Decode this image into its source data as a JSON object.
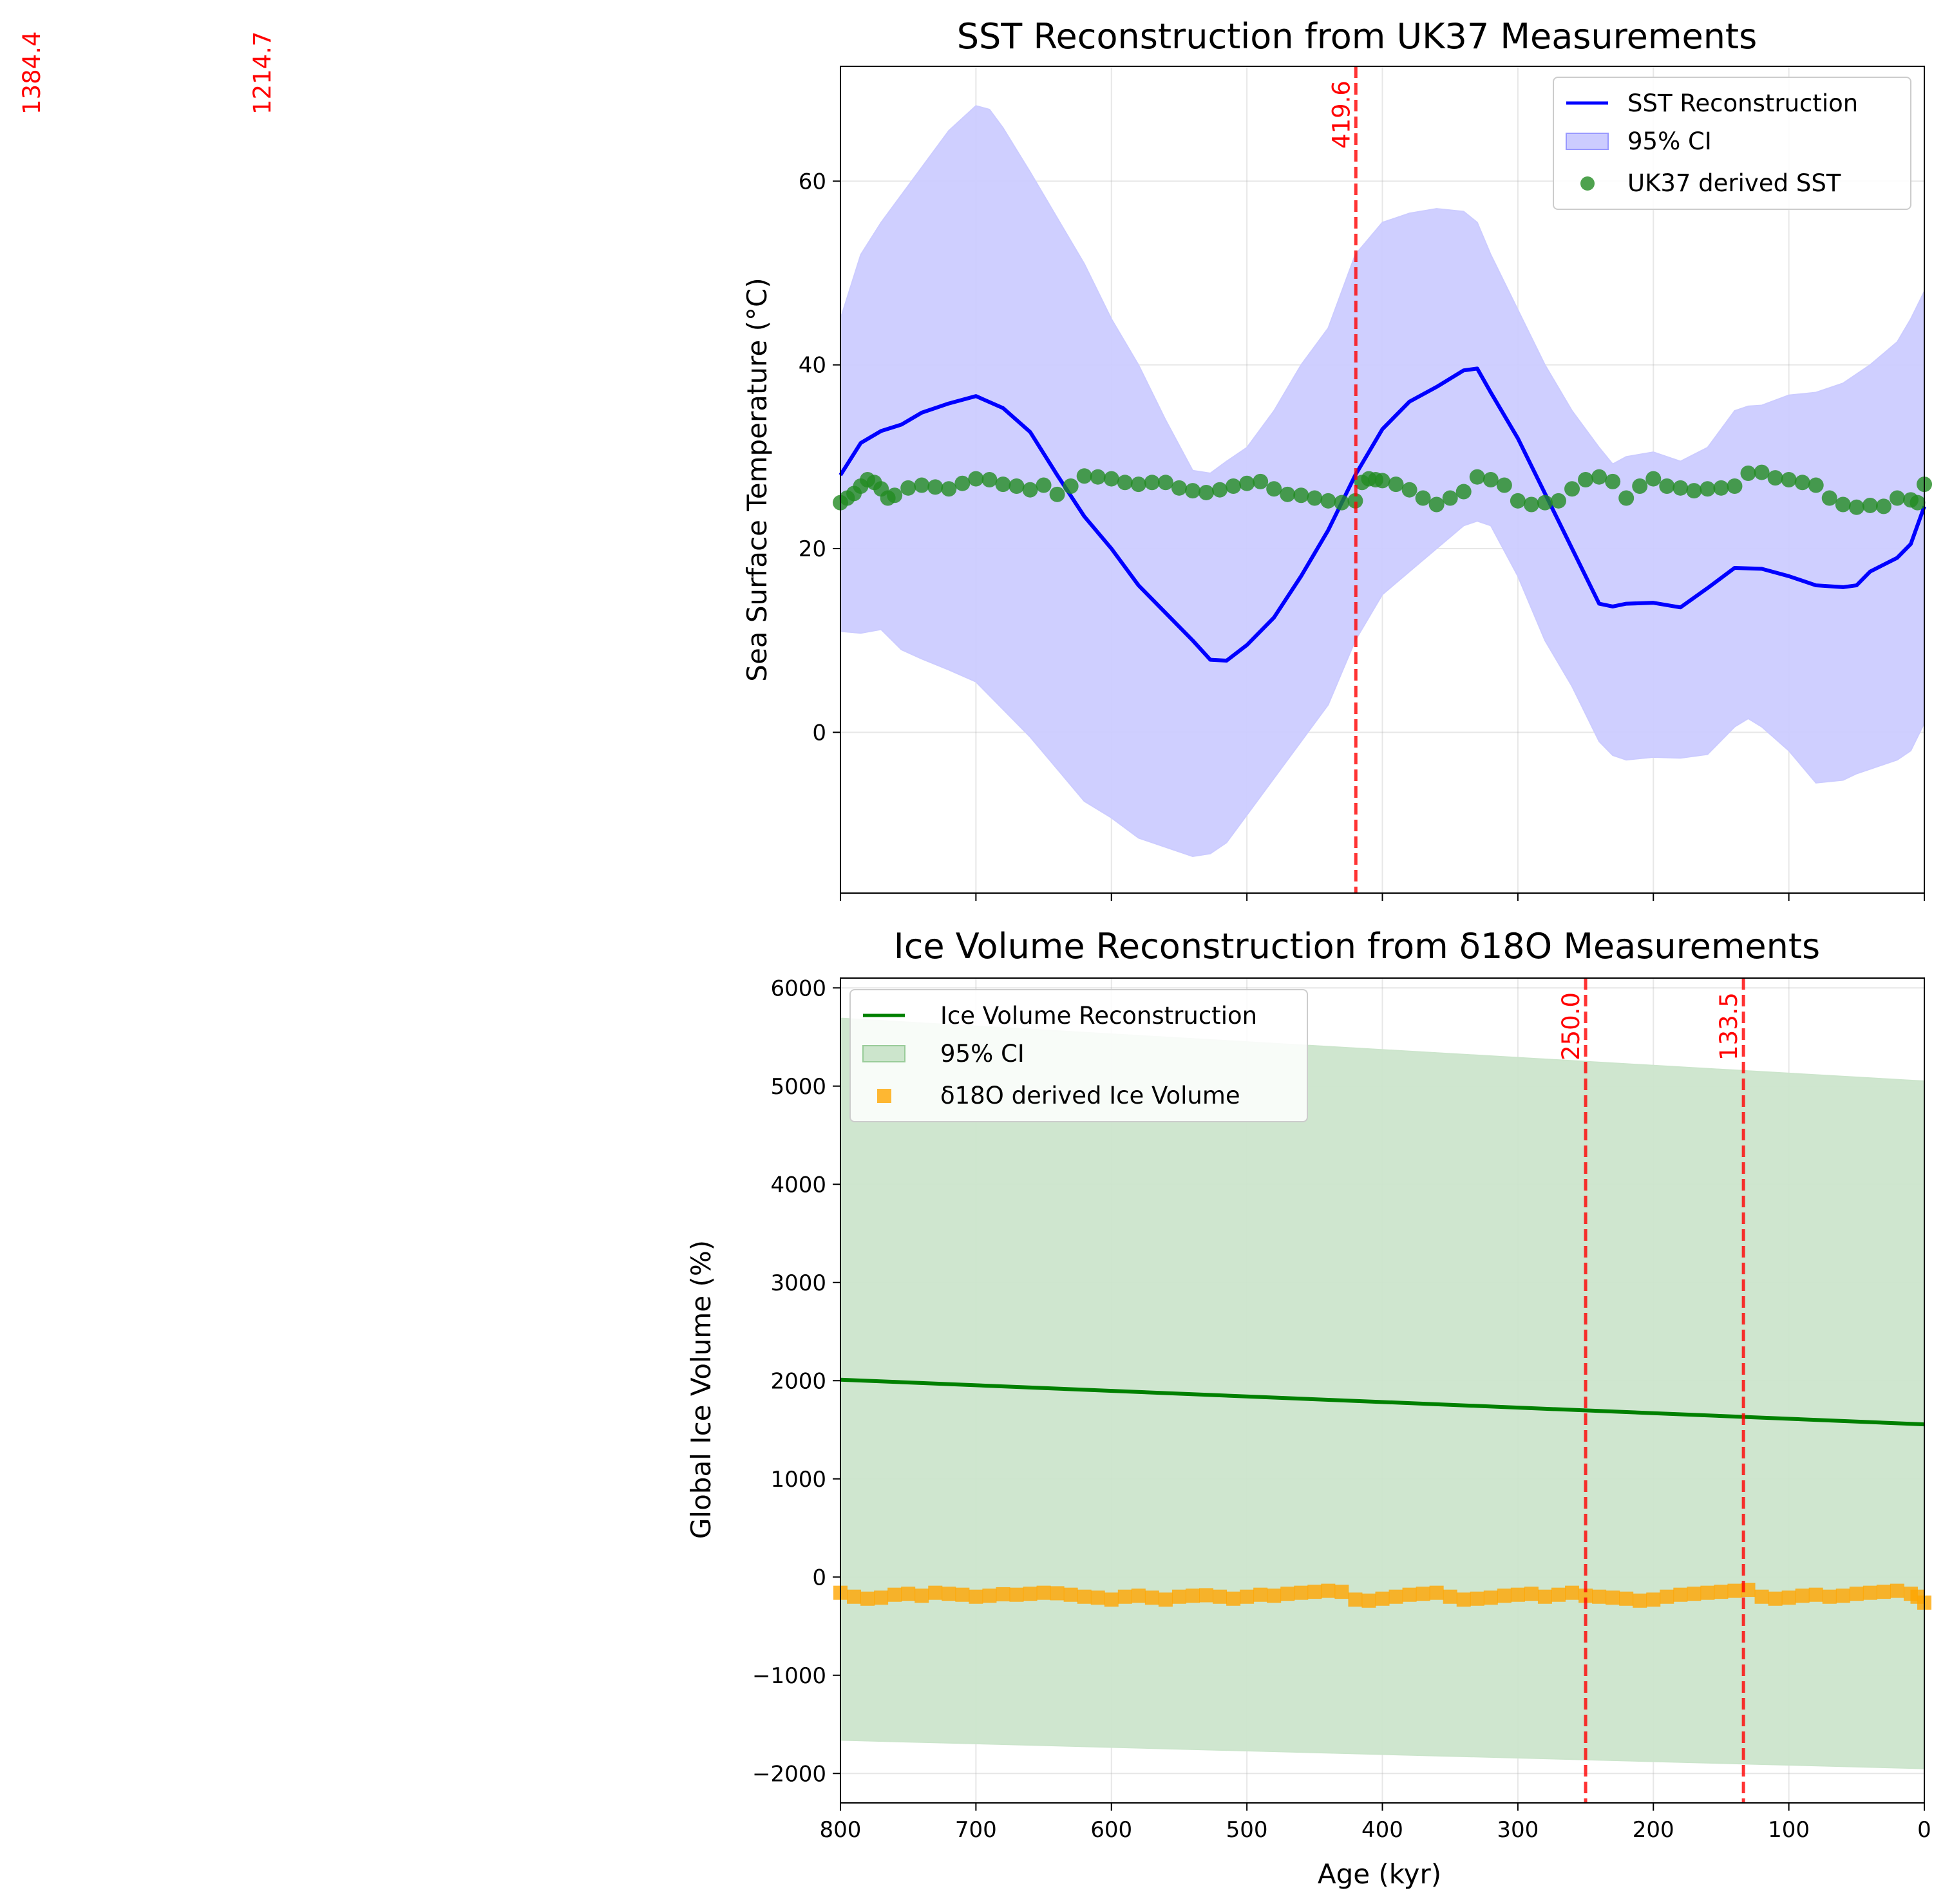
{
  "chart_data": [
    {
      "type": "line",
      "title": "SST Reconstruction from UK37 Measurements",
      "xlabel": "",
      "ylabel": "Sea Surface Temperature (°C)",
      "xlim": [
        800,
        0
      ],
      "ylim": [
        -17.5,
        72.5
      ],
      "x_ticks": [
        800,
        700,
        600,
        500,
        400,
        300,
        200,
        100,
        0
      ],
      "y_ticks": [
        0,
        20,
        40,
        60
      ],
      "grid": true,
      "legend_position": "top-right",
      "legend": [
        "SST Reconstruction",
        "95% CI",
        "UK37 derived SST"
      ],
      "colors": {
        "line": "#0000ff",
        "band": "#ccccff",
        "points": "#228b22",
        "event": "#ff0000"
      },
      "series": [
        {
          "name": "SST Reconstruction",
          "kind": "line",
          "x": [
            800,
            785,
            770,
            755,
            740,
            720,
            700,
            680,
            660,
            640,
            620,
            600,
            580,
            560,
            540,
            527,
            515,
            500,
            480,
            460,
            440,
            420,
            400,
            380,
            360,
            340,
            330,
            320,
            300,
            280,
            260,
            240,
            230,
            220,
            200,
            180,
            160,
            140,
            120,
            100,
            80,
            60,
            50,
            40,
            20,
            10,
            0
          ],
          "y": [
            28,
            31.5,
            32.8,
            33.5,
            34.8,
            35.8,
            36.6,
            35.3,
            32.7,
            28,
            23.5,
            20,
            16,
            13,
            10,
            7.9,
            7.8,
            9.5,
            12.5,
            17,
            22,
            28,
            33,
            36,
            37.6,
            39.4,
            39.6,
            37,
            32,
            26,
            20,
            14,
            13.7,
            14,
            14.1,
            13.6,
            15.7,
            17.9,
            17.8,
            17,
            16,
            15.8,
            16,
            17.5,
            19,
            20.5,
            24.6
          ]
        },
        {
          "name": "95% CI",
          "kind": "band",
          "x": [
            800,
            785,
            770,
            755,
            740,
            720,
            700,
            690,
            680,
            660,
            640,
            620,
            600,
            580,
            560,
            540,
            527,
            515,
            500,
            480,
            460,
            440,
            420,
            400,
            380,
            360,
            340,
            330,
            320,
            300,
            280,
            260,
            240,
            230,
            220,
            200,
            180,
            160,
            140,
            130,
            120,
            100,
            80,
            60,
            50,
            40,
            20,
            10,
            0
          ],
          "lower": [
            11,
            10.8,
            11.2,
            9,
            8,
            6.8,
            5.5,
            4,
            2.5,
            -0.5,
            -4,
            -7.5,
            -9.3,
            -11.5,
            -12.5,
            -13.5,
            -13.2,
            -12,
            -9,
            -5,
            -1,
            3,
            10,
            15,
            17.5,
            20,
            22.5,
            23,
            22.5,
            17,
            10,
            5,
            -1,
            -2.5,
            -3,
            -2.7,
            -2.8,
            -2.4,
            0.6,
            1.5,
            0.6,
            -2,
            -5.5,
            -5.2,
            -4.5,
            -4,
            -3,
            -2,
            1
          ],
          "upper": [
            45,
            52,
            55.5,
            58.5,
            61.5,
            65.5,
            68.2,
            67.8,
            65.8,
            61,
            56,
            51,
            45,
            40,
            34,
            28.5,
            28.2,
            29.5,
            31,
            35,
            40,
            44,
            52,
            55.5,
            56.5,
            57,
            56.7,
            55.5,
            52,
            46,
            40,
            35,
            31,
            29.2,
            30,
            30.5,
            29.5,
            31,
            35,
            35.5,
            35.6,
            36.7,
            37,
            38,
            39,
            40,
            42.5,
            45,
            48
          ]
        },
        {
          "name": "UK37 derived SST",
          "kind": "scatter",
          "x": [
            800,
            795,
            790,
            785,
            780,
            775,
            770,
            765,
            760,
            750,
            740,
            730,
            720,
            710,
            700,
            690,
            680,
            670,
            660,
            650,
            640,
            630,
            620,
            610,
            600,
            590,
            580,
            570,
            560,
            550,
            540,
            530,
            520,
            510,
            500,
            490,
            480,
            470,
            460,
            450,
            440,
            430,
            420,
            415,
            410,
            405,
            400,
            390,
            380,
            370,
            360,
            350,
            340,
            330,
            320,
            310,
            300,
            290,
            280,
            270,
            260,
            250,
            240,
            230,
            220,
            210,
            200,
            190,
            180,
            170,
            160,
            150,
            140,
            130,
            120,
            110,
            100,
            90,
            80,
            70,
            60,
            50,
            40,
            30,
            20,
            10,
            5,
            0
          ],
          "y": [
            25,
            25.5,
            26,
            26.8,
            27.5,
            27.2,
            26.5,
            25.5,
            25.8,
            26.6,
            26.9,
            26.7,
            26.5,
            27.1,
            27.6,
            27.5,
            27.0,
            26.8,
            26.4,
            26.9,
            25.9,
            26.8,
            27.9,
            27.8,
            27.6,
            27.2,
            27.0,
            27.2,
            27.2,
            26.6,
            26.3,
            26.1,
            26.4,
            26.8,
            27.1,
            27.3,
            26.5,
            25.9,
            25.8,
            25.5,
            25.2,
            25.0,
            25.2,
            27.2,
            27.6,
            27.5,
            27.4,
            27.0,
            26.4,
            25.5,
            24.8,
            25.5,
            26.2,
            27.8,
            27.5,
            26.9,
            25.2,
            24.8,
            25.0,
            25.2,
            26.5,
            27.5,
            27.8,
            27.3,
            25.5,
            26.8,
            27.6,
            26.8,
            26.6,
            26.3,
            26.5,
            26.6,
            26.8,
            28.2,
            28.3,
            27.7,
            27.5,
            27.2,
            26.9,
            25.5,
            24.8,
            24.5,
            24.7,
            24.6,
            25.5,
            25.3,
            25.0,
            27.0
          ]
        }
      ],
      "event_lines": [
        {
          "x": 419.6,
          "label": "419.6"
        }
      ]
    },
    {
      "type": "line",
      "title": "Ice Volume Reconstruction from δ18O Measurements",
      "xlabel": "Age (kyr)",
      "ylabel": "Global Ice Volume (%)",
      "xlim": [
        800,
        0
      ],
      "ylim": [
        -2300,
        6100
      ],
      "x_ticks": [
        800,
        700,
        600,
        500,
        400,
        300,
        200,
        100,
        0
      ],
      "y_ticks": [
        -2000,
        -1000,
        0,
        1000,
        2000,
        3000,
        4000,
        5000,
        6000
      ],
      "y_tick_labels": [
        "−2000",
        "−1000",
        "0",
        "1000",
        "2000",
        "3000",
        "4000",
        "5000",
        "6000"
      ],
      "grid": true,
      "legend_position": "top-left",
      "legend": [
        "Ice Volume Reconstruction",
        "95% CI",
        "δ18O derived Ice Volume"
      ],
      "colors": {
        "line": "#008000",
        "band": "#cce5cc",
        "points": "#ffa500",
        "event": "#ff0000"
      },
      "series": [
        {
          "name": "Ice Volume Reconstruction",
          "kind": "line",
          "x": [
            800,
            0
          ],
          "y": [
            2010,
            1555
          ]
        },
        {
          "name": "95% CI",
          "kind": "band",
          "x": [
            800,
            0
          ],
          "lower": [
            -1660,
            -1950
          ],
          "upper": [
            5690,
            5050
          ]
        },
        {
          "name": "δ18O derived Ice Volume",
          "kind": "scatter",
          "x": [
            800,
            790,
            780,
            770,
            760,
            750,
            740,
            730,
            720,
            710,
            700,
            690,
            680,
            670,
            660,
            650,
            640,
            630,
            620,
            610,
            600,
            590,
            580,
            570,
            560,
            550,
            540,
            530,
            520,
            510,
            500,
            490,
            480,
            470,
            460,
            450,
            440,
            430,
            420,
            410,
            400,
            390,
            380,
            370,
            360,
            350,
            340,
            330,
            320,
            310,
            300,
            290,
            280,
            270,
            260,
            250,
            240,
            230,
            220,
            210,
            200,
            190,
            180,
            170,
            160,
            150,
            140,
            130,
            120,
            110,
            100,
            90,
            80,
            70,
            60,
            50,
            40,
            30,
            20,
            10,
            5,
            0
          ],
          "y": [
            -160,
            -200,
            -220,
            -210,
            -180,
            -170,
            -190,
            -160,
            -170,
            -180,
            -200,
            -190,
            -175,
            -180,
            -170,
            -160,
            -165,
            -180,
            -200,
            -210,
            -230,
            -200,
            -190,
            -210,
            -230,
            -200,
            -190,
            -185,
            -200,
            -220,
            -200,
            -180,
            -190,
            -170,
            -160,
            -150,
            -140,
            -150,
            -230,
            -240,
            -220,
            -200,
            -180,
            -170,
            -160,
            -200,
            -230,
            -220,
            -210,
            -190,
            -180,
            -170,
            -200,
            -180,
            -160,
            -190,
            -200,
            -210,
            -220,
            -240,
            -230,
            -200,
            -180,
            -170,
            -160,
            -150,
            -140,
            -130,
            -200,
            -220,
            -210,
            -190,
            -180,
            -200,
            -190,
            -170,
            -160,
            -150,
            -140,
            -170,
            -200,
            -260
          ]
        }
      ],
      "event_lines": [
        {
          "x": 250.0,
          "label": "250.0"
        },
        {
          "x": 133.5,
          "label": "133.5"
        }
      ]
    }
  ],
  "stray_labels": [
    {
      "x_data": 1384.4,
      "label": "1384.4"
    },
    {
      "x_data": 1214.7,
      "label": "1214.7"
    }
  ]
}
